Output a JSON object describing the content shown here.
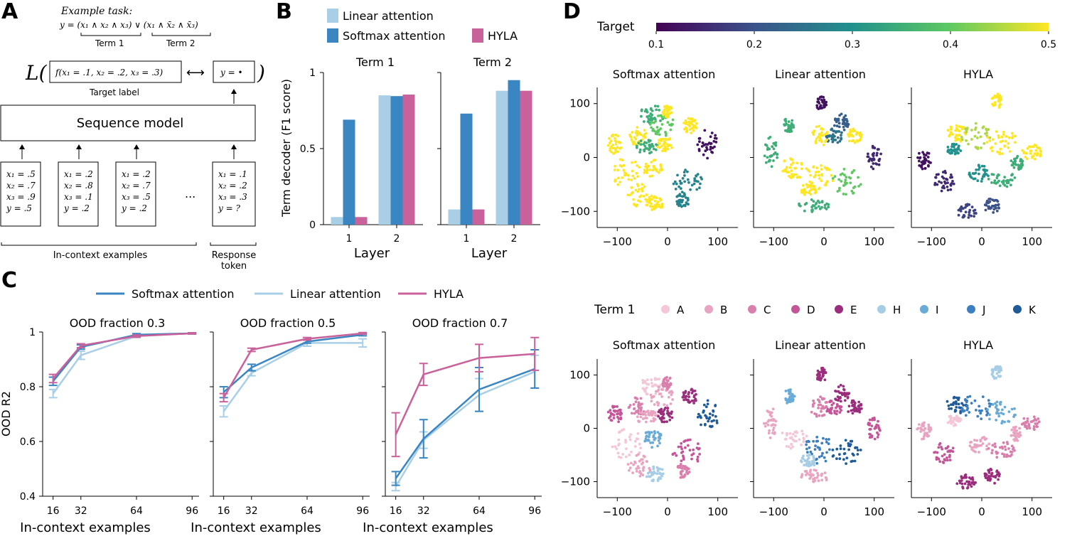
{
  "figure": {
    "panel_labels": [
      "A",
      "B",
      "C",
      "D"
    ]
  },
  "panel_a": {
    "example_task_label": "Example task:",
    "formula_y": "y = (x₁ ∧ x₂ ∧ x₃) ∨ (x₁ ∧ x̄₂ ∧ x̄₃)",
    "term1_label": "Term 1",
    "term2_label": "Term 2",
    "loss_symbol": "L(",
    "loss_close": ")",
    "target_function": "f(x₁ = .1, x₂ = .2, x₃ = .3)",
    "target_label": "Target label",
    "arrow_symbol": "⟷",
    "y_output": "y = •",
    "sequence_model_label": "Sequence model",
    "examples": [
      [
        "x₁ = .5",
        "x₂ = .7",
        "x₃ = .9",
        "y = .5"
      ],
      [
        "x₁ = .2",
        "x₂ = .8",
        "x₃ = .1",
        "y = .2"
      ],
      [
        "x₁ = .2",
        "x₂ = .7",
        "x₃ = .5",
        "y = .2"
      ]
    ],
    "ellipsis": "...",
    "response": [
      "x₁ = .1",
      "x₂ = .2",
      "x₃ = .3",
      "y = ?"
    ],
    "in_context_label": "In-context examples",
    "response_label_1": "Response",
    "response_label_2": "token"
  },
  "colors": {
    "softmax": "#3a86c2",
    "linear": "#a8cfe6",
    "hyla": "#c9619b"
  },
  "chart_data": [
    {
      "id": "B",
      "type": "bar",
      "ylabel": "Term decoder (F1 score)",
      "xlabel": "Layer",
      "ylim": [
        0,
        1
      ],
      "yticks": [
        "0",
        "0.5",
        "1"
      ],
      "legend": [
        "Linear attention",
        "Softmax attention",
        "HYLA"
      ],
      "subplots": [
        {
          "title": "Term 1",
          "categories": [
            "1",
            "2"
          ],
          "series": [
            {
              "name": "Linear attention",
              "values": [
                0.05,
                0.85
              ]
            },
            {
              "name": "Softmax attention",
              "values": [
                0.69,
                0.845
              ]
            },
            {
              "name": "HYLA",
              "values": [
                0.05,
                0.855
              ]
            }
          ]
        },
        {
          "title": "Term 2",
          "categories": [
            "1",
            "2"
          ],
          "series": [
            {
              "name": "Linear attention",
              "values": [
                0.1,
                0.88
              ]
            },
            {
              "name": "Softmax attention",
              "values": [
                0.73,
                0.95
              ]
            },
            {
              "name": "HYLA",
              "values": [
                0.1,
                0.88
              ]
            }
          ]
        }
      ]
    },
    {
      "id": "C",
      "type": "line",
      "ylabel": "OOD R2",
      "xlabel": "In-context examples",
      "ylim": [
        0.4,
        1
      ],
      "xlim": [
        10,
        100
      ],
      "yticks": [
        "0.4",
        "0.6",
        "0.8",
        "1"
      ],
      "xticks": [
        "16",
        "32",
        "64",
        "96"
      ],
      "x": [
        16,
        32,
        64,
        96
      ],
      "legend": [
        "Softmax attention",
        "Linear attention",
        "HYLA"
      ],
      "subplots": [
        {
          "title": "OOD fraction 0.3",
          "series": [
            {
              "name": "Softmax attention",
              "values": [
                0.82,
                0.945,
                0.99,
                0.995
              ],
              "err": [
                0.015,
                0.008,
                0.004,
                0.002
              ]
            },
            {
              "name": "Linear attention",
              "values": [
                0.775,
                0.915,
                0.985,
                0.995
              ],
              "err": [
                0.015,
                0.015,
                0.005,
                0.002
              ]
            },
            {
              "name": "HYLA",
              "values": [
                0.83,
                0.95,
                0.985,
                0.995
              ],
              "err": [
                0.015,
                0.007,
                0.004,
                0.002
              ]
            }
          ]
        },
        {
          "title": "OOD fraction 0.5",
          "series": [
            {
              "name": "Softmax attention",
              "values": [
                0.78,
                0.87,
                0.965,
                0.99
              ],
              "err": [
                0.02,
                0.012,
                0.006,
                0.004
              ]
            },
            {
              "name": "Linear attention",
              "values": [
                0.71,
                0.85,
                0.96,
                0.96
              ],
              "err": [
                0.02,
                0.01,
                0.012,
                0.015
              ]
            },
            {
              "name": "HYLA",
              "values": [
                0.76,
                0.935,
                0.975,
                0.995
              ],
              "err": [
                0.015,
                0.006,
                0.005,
                0.003
              ]
            }
          ]
        },
        {
          "title": "OOD fraction 0.7",
          "series": [
            {
              "name": "Softmax attention",
              "values": [
                0.465,
                0.61,
                0.79,
                0.865
              ],
              "err": [
                0.025,
                0.07,
                0.08,
                0.07
              ]
            },
            {
              "name": "Linear attention",
              "values": [
                0.435,
                0.605,
                0.77,
                0.855
              ],
              "err": [
                0.015,
                0.03,
                0.06,
                0.06
              ]
            },
            {
              "name": "HYLA",
              "values": [
                0.625,
                0.845,
                0.905,
                0.92
              ],
              "err": [
                0.08,
                0.04,
                0.05,
                0.06
              ]
            }
          ]
        }
      ]
    },
    {
      "id": "D",
      "type": "scatter",
      "colorbar": {
        "label": "Target",
        "ticks": [
          "0.1",
          "0.2",
          "0.3",
          "0.4",
          "0.5"
        ]
      },
      "term_legend": {
        "label": "Term 1",
        "entries": [
          {
            "name": "A",
            "color": "#f3c6d8"
          },
          {
            "name": "B",
            "color": "#e8a4c1"
          },
          {
            "name": "C",
            "color": "#d97fac"
          },
          {
            "name": "D",
            "color": "#c45597"
          },
          {
            "name": "E",
            "color": "#9b2e7c"
          },
          {
            "name": "H",
            "color": "#a6cde6"
          },
          {
            "name": "I",
            "color": "#6aaad6"
          },
          {
            "name": "J",
            "color": "#3b7fc0"
          },
          {
            "name": "K",
            "color": "#1f5a99"
          }
        ]
      },
      "xticks": [
        "−100",
        "0",
        "100"
      ],
      "yticks": [
        "100",
        "0",
        "−100"
      ],
      "xlim": [
        -140,
        140
      ],
      "ylim": [
        -130,
        130
      ],
      "top_titles": [
        "Softmax attention",
        "Linear attention",
        "HYLA"
      ],
      "bottom_titles": [
        "Softmax attention",
        "Linear attention",
        "HYLA"
      ],
      "clusters": [
        [
          {
            "x": -30,
            "y": 80,
            "w": 25,
            "h": 18,
            "t": 0.35,
            "c": 0
          },
          {
            "x": -10,
            "y": 60,
            "w": 25,
            "h": 20,
            "t": 0.4,
            "c": 1
          },
          {
            "x": 0,
            "y": 85,
            "w": 10,
            "h": 12,
            "t": 0.5,
            "c": 2
          },
          {
            "x": -105,
            "y": 25,
            "w": 14,
            "h": 18,
            "t": 0.5,
            "c": 3
          },
          {
            "x": -60,
            "y": 40,
            "w": 18,
            "h": 18,
            "t": 0.5,
            "c": 2
          },
          {
            "x": -40,
            "y": 20,
            "w": 22,
            "h": 14,
            "t": 0.35,
            "c": 1
          },
          {
            "x": -5,
            "y": 25,
            "w": 16,
            "h": 14,
            "t": 0.5,
            "c": 4
          },
          {
            "x": -80,
            "y": -30,
            "w": 30,
            "h": 30,
            "t": 0.5,
            "c": 0
          },
          {
            "x": -55,
            "y": -70,
            "w": 24,
            "h": 22,
            "t": 0.5,
            "c": 1
          },
          {
            "x": -25,
            "y": -85,
            "w": 18,
            "h": 14,
            "t": 0.5,
            "c": 5
          },
          {
            "x": 40,
            "y": -45,
            "w": 30,
            "h": 24,
            "t": 0.28,
            "c": 3
          },
          {
            "x": 80,
            "y": 25,
            "w": 22,
            "h": 28,
            "t": 0.12,
            "c": 8
          },
          {
            "x": 45,
            "y": 60,
            "w": 15,
            "h": 15,
            "t": 0.5,
            "c": 4
          },
          {
            "x": -30,
            "y": -20,
            "w": 20,
            "h": 16,
            "t": 0.5,
            "c": 6
          },
          {
            "x": 30,
            "y": -80,
            "w": 14,
            "h": 14,
            "t": 0.28,
            "c": 2
          }
        ],
        [
          {
            "x": -5,
            "y": 100,
            "w": 10,
            "h": 14,
            "t": 0.12,
            "c": 4
          },
          {
            "x": 35,
            "y": 65,
            "w": 16,
            "h": 16,
            "t": 0.22,
            "c": 4
          },
          {
            "x": 20,
            "y": 40,
            "w": 18,
            "h": 14,
            "t": 0.25,
            "c": 3
          },
          {
            "x": -10,
            "y": 40,
            "w": 18,
            "h": 20,
            "t": 0.5,
            "c": 2
          },
          {
            "x": -105,
            "y": 10,
            "w": 14,
            "h": 28,
            "t": 0.35,
            "c": 1
          },
          {
            "x": -70,
            "y": 60,
            "w": 12,
            "h": 14,
            "t": 0.35,
            "c": 6
          },
          {
            "x": -60,
            "y": -20,
            "w": 28,
            "h": 20,
            "t": 0.5,
            "c": 0
          },
          {
            "x": -10,
            "y": -40,
            "w": 30,
            "h": 28,
            "t": 0.5,
            "c": 7
          },
          {
            "x": 45,
            "y": -45,
            "w": 30,
            "h": 24,
            "t": 0.4,
            "c": 8
          },
          {
            "x": -20,
            "y": -90,
            "w": 32,
            "h": 12,
            "t": 0.35,
            "c": 1
          },
          {
            "x": 100,
            "y": 0,
            "w": 14,
            "h": 22,
            "t": 0.15,
            "c": 3
          },
          {
            "x": -30,
            "y": -60,
            "w": 16,
            "h": 12,
            "t": 0.5,
            "c": 5
          },
          {
            "x": 60,
            "y": 40,
            "w": 16,
            "h": 14,
            "t": 0.5,
            "c": 4
          }
        ],
        [
          {
            "x": 30,
            "y": 105,
            "w": 10,
            "h": 14,
            "t": 0.5,
            "c": 5
          },
          {
            "x": -50,
            "y": 45,
            "w": 20,
            "h": 18,
            "t": 0.5,
            "c": 8
          },
          {
            "x": -10,
            "y": 40,
            "w": 30,
            "h": 24,
            "t": 0.45,
            "c": 7
          },
          {
            "x": 40,
            "y": 30,
            "w": 30,
            "h": 24,
            "t": 0.5,
            "c": 6
          },
          {
            "x": 100,
            "y": 10,
            "w": 20,
            "h": 14,
            "t": 0.5,
            "c": 2
          },
          {
            "x": -115,
            "y": -5,
            "w": 14,
            "h": 18,
            "t": 0.12,
            "c": 1
          },
          {
            "x": -75,
            "y": -45,
            "w": 20,
            "h": 20,
            "t": 0.15,
            "c": 3
          },
          {
            "x": -5,
            "y": -30,
            "w": 20,
            "h": 16,
            "t": 0.3,
            "c": 1
          },
          {
            "x": 40,
            "y": -40,
            "w": 28,
            "h": 16,
            "t": 0.35,
            "c": 2
          },
          {
            "x": 70,
            "y": -10,
            "w": 12,
            "h": 14,
            "t": 0.35,
            "c": 1
          },
          {
            "x": -30,
            "y": -100,
            "w": 20,
            "h": 14,
            "t": 0.18,
            "c": 4
          },
          {
            "x": 20,
            "y": -90,
            "w": 16,
            "h": 14,
            "t": 0.2,
            "c": 4
          },
          {
            "x": -55,
            "y": 15,
            "w": 14,
            "h": 10,
            "t": 0.3,
            "c": 0
          }
        ]
      ]
    }
  ]
}
